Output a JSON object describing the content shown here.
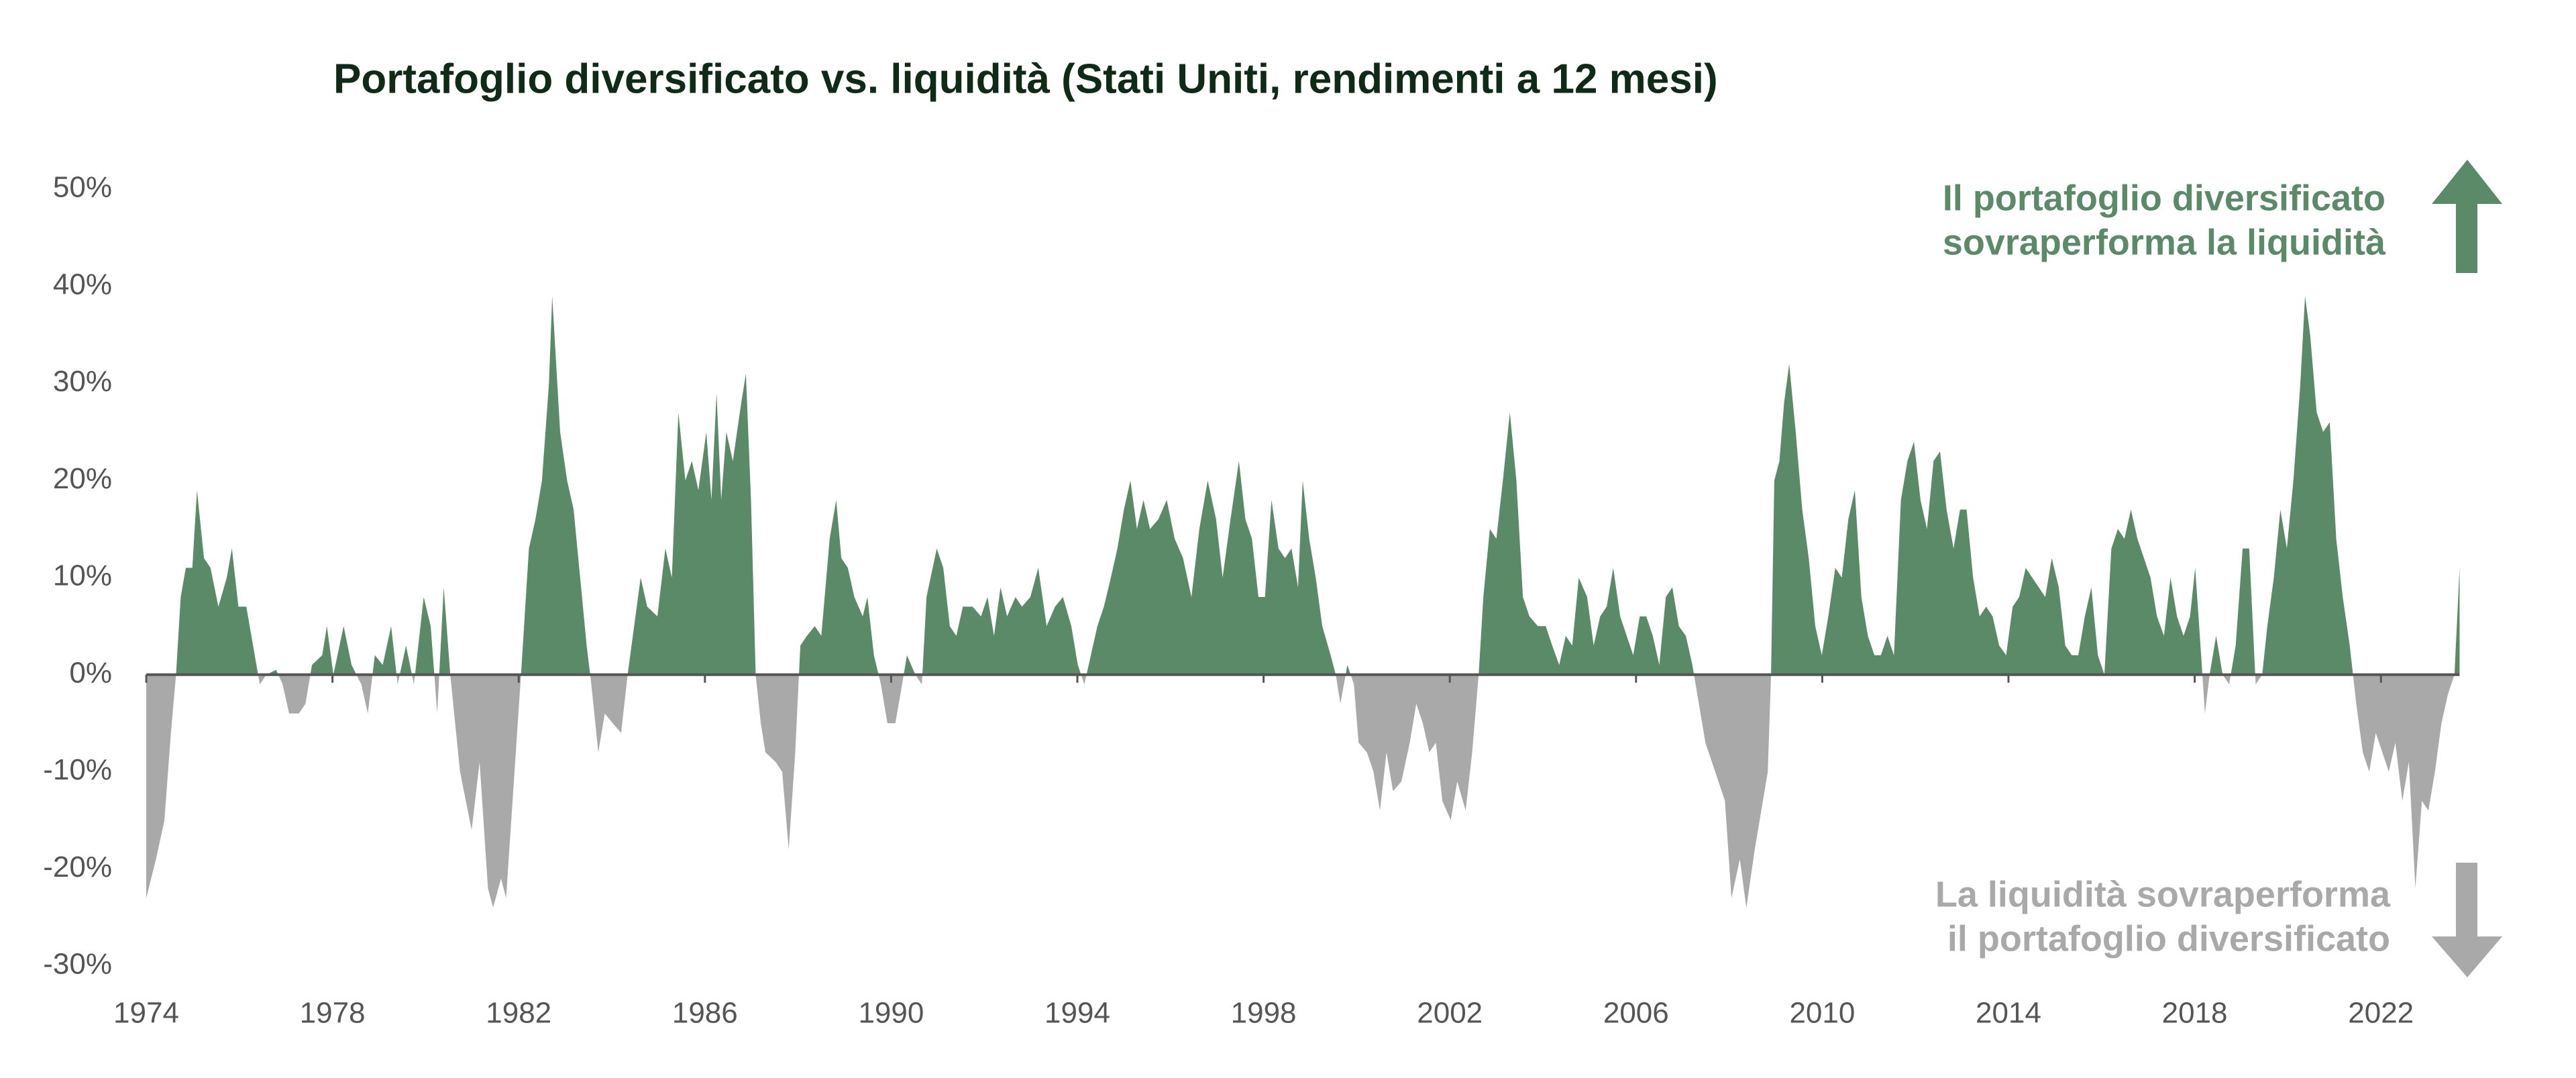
{
  "chart_data": {
    "type": "area",
    "title": "Portafoglio diversificato vs. liquidità (Stati Uniti, rendimenti a 12 mesi)",
    "x": [
      1974.0,
      1974.21,
      1974.39,
      1974.53,
      1974.64,
      1974.74,
      1974.85,
      1974.99,
      1975.09,
      1975.24,
      1975.38,
      1975.55,
      1975.73,
      1975.84,
      1975.98,
      1976.15,
      1976.33,
      1976.44,
      1976.58,
      1976.79,
      1976.93,
      1977.07,
      1977.28,
      1977.42,
      1977.56,
      1977.78,
      1977.88,
      1978.02,
      1978.24,
      1978.41,
      1978.62,
      1978.76,
      1978.91,
      1979.08,
      1979.26,
      1979.4,
      1979.58,
      1979.75,
      1979.96,
      1980.11,
      1980.25,
      1980.39,
      1980.53,
      1980.74,
      1980.99,
      1981.16,
      1981.34,
      1981.45,
      1981.62,
      1981.73,
      1981.91,
      1982.05,
      1982.22,
      1982.36,
      1982.5,
      1982.65,
      1982.72,
      1982.89,
      1983.04,
      1983.18,
      1983.32,
      1983.46,
      1983.56,
      1983.71,
      1983.85,
      1984.02,
      1984.2,
      1984.34,
      1984.48,
      1984.62,
      1984.76,
      1984.98,
      1985.15,
      1985.29,
      1985.43,
      1985.58,
      1985.72,
      1985.86,
      1986.03,
      1986.14,
      1986.25,
      1986.35,
      1986.46,
      1986.6,
      1986.78,
      1986.88,
      1986.99,
      1987.09,
      1987.2,
      1987.3,
      1987.52,
      1987.66,
      1987.8,
      1987.94,
      1988.05,
      1988.19,
      1988.36,
      1988.5,
      1988.68,
      1988.82,
      1988.93,
      1989.07,
      1989.21,
      1989.39,
      1989.49,
      1989.63,
      1989.78,
      1989.92,
      1990.09,
      1990.2,
      1990.34,
      1990.52,
      1990.66,
      1990.76,
      1990.98,
      1991.12,
      1991.26,
      1991.4,
      1991.54,
      1991.75,
      1991.93,
      1992.07,
      1992.21,
      1992.35,
      1992.49,
      1992.67,
      1992.81,
      1992.99,
      1993.16,
      1993.34,
      1993.52,
      1993.69,
      1993.87,
      1994.01,
      1994.15,
      1994.29,
      1994.43,
      1994.57,
      1994.72,
      1994.86,
      1995.0,
      1995.14,
      1995.28,
      1995.42,
      1995.56,
      1995.74,
      1995.92,
      1996.09,
      1996.27,
      1996.45,
      1996.62,
      1996.8,
      1996.98,
      1997.12,
      1997.29,
      1997.47,
      1997.61,
      1997.75,
      1997.89,
      1998.03,
      1998.17,
      1998.32,
      1998.46,
      1998.6,
      1998.74,
      1998.84,
      1998.98,
      1999.12,
      1999.26,
      1999.44,
      1999.55,
      1999.65,
      1999.8,
      1999.94,
      2000.04,
      2000.22,
      2000.36,
      2000.5,
      2000.64,
      2000.78,
      2000.96,
      2001.14,
      2001.28,
      2001.42,
      2001.56,
      2001.7,
      2001.84,
      2002.02,
      2002.16,
      2002.34,
      2002.48,
      2002.62,
      2002.72,
      2002.86,
      2003.0,
      2003.14,
      2003.29,
      2003.43,
      2003.57,
      2003.71,
      2003.89,
      2004.06,
      2004.2,
      2004.35,
      2004.49,
      2004.63,
      2004.77,
      2004.95,
      2005.09,
      2005.23,
      2005.37,
      2005.51,
      2005.66,
      2005.8,
      2005.94,
      2006.08,
      2006.22,
      2006.36,
      2006.5,
      2006.64,
      2006.78,
      2006.92,
      2007.07,
      2007.21,
      2007.35,
      2007.49,
      2007.63,
      2007.77,
      2007.91,
      2008.05,
      2008.23,
      2008.37,
      2008.55,
      2008.69,
      2008.83,
      2008.9,
      2008.97,
      2009.08,
      2009.18,
      2009.29,
      2009.43,
      2009.57,
      2009.71,
      2009.85,
      2009.99,
      2010.13,
      2010.28,
      2010.42,
      2010.56,
      2010.7,
      2010.84,
      2010.98,
      2011.12,
      2011.26,
      2011.4,
      2011.54,
      2011.69,
      2011.83,
      2011.97,
      2012.11,
      2012.25,
      2012.39,
      2012.53,
      2012.67,
      2012.82,
      2012.96,
      2013.1,
      2013.24,
      2013.38,
      2013.52,
      2013.66,
      2013.8,
      2013.95,
      2014.09,
      2014.23,
      2014.37,
      2014.51,
      2014.65,
      2014.79,
      2014.93,
      2015.08,
      2015.22,
      2015.36,
      2015.5,
      2015.64,
      2015.78,
      2015.92,
      2016.06,
      2016.21,
      2016.35,
      2016.49,
      2016.63,
      2016.77,
      2016.91,
      2017.05,
      2017.19,
      2017.34,
      2017.48,
      2017.62,
      2017.76,
      2017.9,
      2018.01,
      2018.11,
      2018.22,
      2018.32,
      2018.46,
      2018.6,
      2018.74,
      2018.88,
      2019.03,
      2019.17,
      2019.31,
      2019.45,
      2019.56,
      2019.7,
      2019.84,
      2019.98,
      2020.12,
      2020.27,
      2020.37,
      2020.48,
      2020.62,
      2020.76,
      2020.9,
      2021.04,
      2021.18,
      2021.33,
      2021.47,
      2021.61,
      2021.75,
      2021.89,
      2022.03,
      2022.17,
      2022.31,
      2022.46,
      2022.6,
      2022.74,
      2022.88,
      2023.02,
      2023.16,
      2023.3,
      2023.44,
      2023.58,
      2023.69
    ],
    "values": [
      -23,
      -19,
      -15,
      -6,
      0,
      8,
      11,
      11,
      19,
      12,
      11,
      7,
      10,
      13,
      7,
      7,
      2,
      -1,
      0,
      0.5,
      -1,
      -4,
      -4,
      -3,
      1,
      2,
      5,
      0,
      5,
      1,
      -1,
      -4,
      2,
      1,
      5,
      -1,
      3,
      -1,
      8,
      5,
      -4,
      9,
      0,
      -10,
      -16,
      -9,
      -22,
      -24,
      -21,
      -23,
      -10,
      0,
      13,
      16,
      20,
      30,
      39,
      25,
      20,
      17,
      10,
      3,
      -1,
      -8,
      -4,
      -5,
      -6,
      0,
      5,
      10,
      7,
      6,
      13,
      10,
      27,
      20,
      22,
      19,
      25,
      18,
      29,
      18,
      25,
      22,
      28,
      31,
      18,
      0,
      -5,
      -8,
      -9,
      -10,
      -18,
      -8,
      3,
      4,
      5,
      4,
      14,
      18,
      12,
      11,
      8,
      6,
      8,
      2,
      -1,
      -5,
      -5,
      -2,
      2,
      0,
      -1,
      8,
      13,
      11,
      5,
      4,
      7,
      7,
      6,
      8,
      4,
      9,
      6,
      8,
      7,
      8,
      11,
      5,
      7,
      8,
      5,
      1,
      -1,
      2,
      5,
      7,
      10,
      13,
      17,
      20,
      15,
      18,
      15,
      16,
      18,
      14,
      12,
      8,
      15,
      20,
      16,
      10,
      16,
      22,
      16,
      14,
      8,
      8,
      18,
      13,
      12,
      13,
      9,
      20,
      14,
      10,
      5,
      2,
      0,
      -3,
      1,
      -1,
      -7,
      -8,
      -10,
      -14,
      -8,
      -12,
      -11,
      -7,
      -3,
      -5,
      -8,
      -7,
      -13,
      -15,
      -11,
      -14,
      -8,
      0,
      8,
      15,
      14,
      20,
      27,
      20,
      8,
      6,
      5,
      5,
      3,
      1,
      4,
      3,
      10,
      8,
      3,
      6,
      7,
      11,
      6,
      4,
      2,
      6,
      6,
      4,
      1,
      8,
      9,
      5,
      4,
      1,
      -3,
      -7,
      -9,
      -11,
      -13,
      -23,
      -19,
      -24,
      -18,
      -14,
      -10,
      0,
      20,
      22,
      28,
      32,
      25,
      17,
      12,
      5,
      2,
      6,
      11,
      10,
      16,
      19,
      8,
      4,
      2,
      2,
      4,
      2,
      18,
      22,
      24,
      18,
      15,
      22,
      23,
      17,
      13,
      17,
      17,
      10,
      6,
      7,
      6,
      3,
      2,
      7,
      8,
      11,
      10,
      9,
      8,
      12,
      9,
      3,
      2,
      2,
      6,
      9,
      2,
      0,
      13,
      15,
      14,
      17,
      14,
      12,
      10,
      6,
      4,
      10,
      6,
      4,
      6,
      11,
      4,
      -4,
      0,
      4,
      0,
      -1,
      3,
      13,
      13,
      -1,
      0,
      5,
      10,
      17,
      13,
      20,
      30,
      39,
      35,
      27,
      25,
      26,
      14,
      8,
      3,
      -3,
      -8,
      -10,
      -6,
      -8,
      -10,
      -7,
      -13,
      -9,
      -22,
      -13,
      -14,
      -10,
      -5,
      -2,
      0,
      11
    ],
    "positive_color": "#5b8a68",
    "negative_color": "#a9a9a9",
    "xlim": [
      1974,
      2024
    ],
    "xticks": [
      1974,
      1978,
      1982,
      1986,
      1990,
      1994,
      1998,
      2002,
      2006,
      2010,
      2014,
      2018,
      2022
    ],
    "ylim": [
      -30,
      50
    ],
    "yticks": [
      {
        "value": 50,
        "label": "50%"
      },
      {
        "value": 40,
        "label": "40%"
      },
      {
        "value": 30,
        "label": "30%"
      },
      {
        "value": 20,
        "label": "20%"
      },
      {
        "value": 10,
        "label": "10%"
      },
      {
        "value": 0,
        "label": "0%"
      },
      {
        "value": -10,
        "label": "-10%"
      },
      {
        "value": -20,
        "label": "-20%"
      },
      {
        "value": -30,
        "label": "-30%"
      }
    ],
    "grid": false,
    "annotations": [
      {
        "lines": [
          "Il portafoglio diversificato",
          "sovraperforma la liquidità"
        ],
        "color": "#5b8a68"
      },
      {
        "lines": [
          "La liquidità sovraperforma",
          "il portafoglio diversificato"
        ],
        "color": "#a9a9a9"
      }
    ]
  }
}
